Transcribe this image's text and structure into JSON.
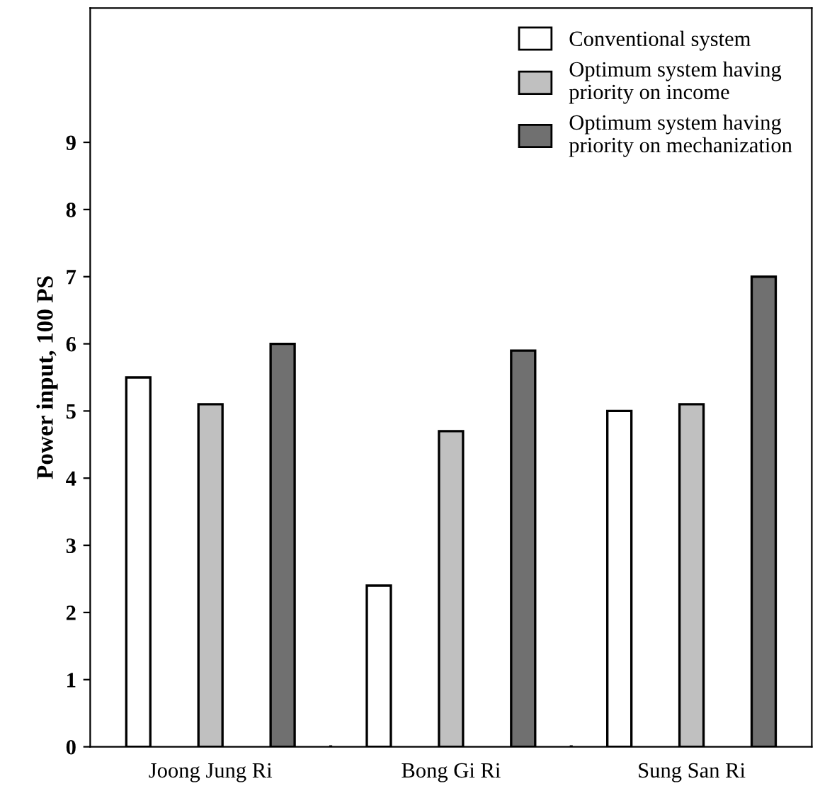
{
  "chart_data": {
    "type": "bar",
    "ylabel": "Power input, 100 PS",
    "categories": [
      "Joong Jung Ri",
      "Bong Gi Ri",
      "Sung San Ri"
    ],
    "series": [
      {
        "name": "Conventional system",
        "color": "#ffffff",
        "values": [
          5.5,
          2.4,
          5.0
        ]
      },
      {
        "name": "Optimum system having\npriority on income",
        "color": "#c0c0c0",
        "values": [
          5.1,
          4.7,
          5.1
        ]
      },
      {
        "name": "Optimum system having\npriority on mechanization",
        "color": "#707070",
        "values": [
          6.0,
          5.9,
          7.0
        ]
      }
    ],
    "ylim": [
      0,
      11
    ],
    "yticks": [
      0,
      1,
      2,
      3,
      4,
      5,
      6,
      7,
      8,
      9
    ],
    "grid": false,
    "legend": "top right"
  }
}
